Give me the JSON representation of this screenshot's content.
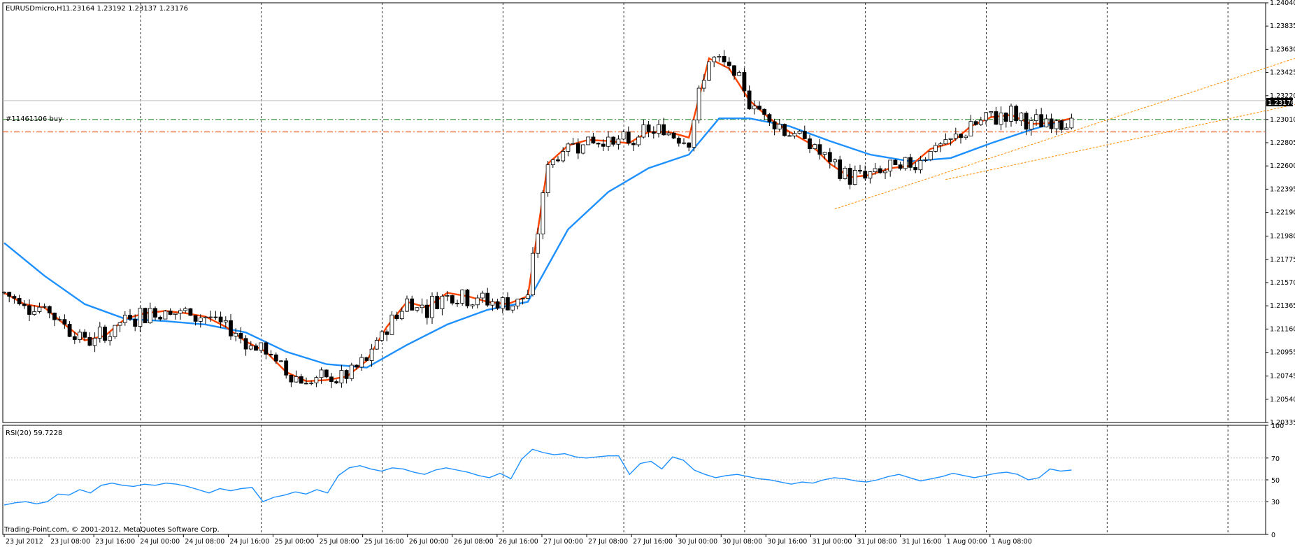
{
  "header": {
    "symbol_label": "EURUSDmicro,H1",
    "ohlc_label": "1.23164 1.23192 1.23137 1.23176"
  },
  "order_line_label": "#11461106 buy",
  "rsi_label": "RSI(20) 59.7228",
  "copyright": "Trading-Point.com, © 2001-2012, MetaQuotes Software Corp.",
  "current_price_label": "1.23176",
  "colors": {
    "background": "#ffffff",
    "bull_candle": "#ffffff",
    "bear_candle": "#000000",
    "ma_fast": "#ff4500",
    "ma_slow": "#1e90ff",
    "rsi_line": "#1e90ff",
    "order_line_green": "#228b22",
    "order_line_red": "#ff4500",
    "trendline": "#ff8c00",
    "current_price_line": "#c0c0c0",
    "grid": "#000000"
  },
  "chart_data": [
    {
      "type": "candlestick",
      "symbol": "EURUSDmicro",
      "timeframe": "H1",
      "ylim": [
        1.20335,
        1.2404
      ],
      "y_ticks": [
        "1.24040",
        "1.23835",
        "1.23630",
        "1.23425",
        "1.23220",
        "1.23010",
        "1.22805",
        "1.22600",
        "1.22395",
        "1.22190",
        "1.21980",
        "1.21775",
        "1.21570",
        "1.21365",
        "1.21160",
        "1.20955",
        "1.20745",
        "1.20540",
        "1.20335"
      ],
      "x_ticks": [
        "23 Jul 2012",
        "23 Jul 08:00",
        "23 Jul 16:00",
        "24 Jul 00:00",
        "24 Jul 08:00",
        "24 Jul 16:00",
        "25 Jul 00:00",
        "25 Jul 08:00",
        "25 Jul 16:00",
        "26 Jul 00:00",
        "26 Jul 08:00",
        "26 Jul 16:00",
        "27 Jul 00:00",
        "27 Jul 08:00",
        "27 Jul 16:00",
        "30 Jul 00:00",
        "30 Jul 08:00",
        "30 Jul 16:00",
        "31 Jul 00:00",
        "31 Jul 08:00",
        "31 Jul 16:00",
        "1 Aug 00:00",
        "1 Aug 08:00"
      ],
      "current_price": 1.23176,
      "order_levels": {
        "buy_order": 1.2301,
        "red_level": 1.229
      },
      "ma_fast_points": [
        [
          0,
          1.2148
        ],
        [
          4,
          1.2138
        ],
        [
          8,
          1.2135
        ],
        [
          12,
          1.212
        ],
        [
          16,
          1.2106
        ],
        [
          20,
          1.211
        ],
        [
          24,
          1.2125
        ],
        [
          28,
          1.213
        ],
        [
          32,
          1.2132
        ],
        [
          36,
          1.213
        ],
        [
          40,
          1.2127
        ],
        [
          44,
          1.2118
        ],
        [
          48,
          1.2105
        ],
        [
          52,
          1.2096
        ],
        [
          56,
          1.2078
        ],
        [
          60,
          1.207
        ],
        [
          64,
          1.2071
        ],
        [
          68,
          1.2074
        ],
        [
          72,
          1.2088
        ],
        [
          76,
          1.2118
        ],
        [
          80,
          1.214
        ],
        [
          84,
          1.2135
        ],
        [
          88,
          1.2148
        ],
        [
          92,
          1.2145
        ],
        [
          96,
          1.214
        ],
        [
          100,
          1.2138
        ],
        [
          104,
          1.2145
        ],
        [
          108,
          1.2262
        ],
        [
          112,
          1.2278
        ],
        [
          116,
          1.2283
        ],
        [
          120,
          1.2282
        ],
        [
          124,
          1.228
        ],
        [
          128,
          1.229
        ],
        [
          132,
          1.229
        ],
        [
          136,
          1.2285
        ],
        [
          140,
          1.2355
        ],
        [
          144,
          1.2346
        ],
        [
          148,
          1.2318
        ],
        [
          152,
          1.2302
        ],
        [
          156,
          1.229
        ],
        [
          160,
          1.228
        ],
        [
          164,
          1.2262
        ],
        [
          168,
          1.225
        ],
        [
          172,
          1.2252
        ],
        [
          176,
          1.2258
        ],
        [
          180,
          1.226
        ],
        [
          184,
          1.2275
        ],
        [
          188,
          1.228
        ],
        [
          192,
          1.2295
        ],
        [
          196,
          1.2303
        ],
        [
          200,
          1.2305
        ],
        [
          204,
          1.2297
        ],
        [
          208,
          1.2298
        ],
        [
          212,
          1.2302
        ]
      ],
      "ma_slow_points": [
        [
          0,
          1.2192
        ],
        [
          8,
          1.2163
        ],
        [
          16,
          1.2138
        ],
        [
          24,
          1.2125
        ],
        [
          32,
          1.2123
        ],
        [
          40,
          1.212
        ],
        [
          48,
          1.2113
        ],
        [
          56,
          1.2096
        ],
        [
          64,
          1.2085
        ],
        [
          72,
          1.2082
        ],
        [
          80,
          1.2102
        ],
        [
          88,
          1.212
        ],
        [
          96,
          1.2133
        ],
        [
          104,
          1.214
        ],
        [
          112,
          1.2204
        ],
        [
          120,
          1.2237
        ],
        [
          128,
          1.2258
        ],
        [
          136,
          1.227
        ],
        [
          142,
          1.2302
        ],
        [
          148,
          1.2302
        ],
        [
          156,
          1.2295
        ],
        [
          164,
          1.2282
        ],
        [
          172,
          1.227
        ],
        [
          180,
          1.2264
        ],
        [
          188,
          1.2267
        ],
        [
          196,
          1.228
        ],
        [
          204,
          1.2292
        ],
        [
          212,
          1.2302
        ]
      ],
      "trendlines": [
        {
          "from": [
            165,
            1.2222
          ],
          "to": [
            275,
            1.2382
          ]
        },
        {
          "from": [
            187,
            1.2248
          ],
          "to": [
            275,
            1.2332
          ]
        }
      ]
    },
    {
      "type": "line",
      "indicator": "RSI(20)",
      "last_value": 59.7228,
      "ylim": [
        0,
        100
      ],
      "y_ticks": [
        "100",
        "70",
        "50",
        "30",
        "0"
      ],
      "levels": [
        70,
        50,
        30
      ],
      "values": [
        27,
        29,
        30,
        28,
        30,
        37,
        36,
        41,
        38,
        45,
        47,
        45,
        44,
        46,
        45,
        47,
        46,
        44,
        41,
        38,
        42,
        40,
        42,
        43,
        30,
        34,
        36,
        39,
        37,
        41,
        38,
        54,
        61,
        63,
        60,
        58,
        61,
        60,
        57,
        55,
        59,
        61,
        59,
        57,
        54,
        52,
        56,
        51,
        69,
        78,
        75,
        73,
        74,
        71,
        70,
        71,
        72,
        72,
        55,
        65,
        67,
        60,
        71,
        68,
        59,
        55,
        52,
        54,
        55,
        53,
        51,
        50,
        48,
        46,
        48,
        47,
        50,
        52,
        51,
        49,
        48,
        50,
        53,
        55,
        52,
        49,
        51,
        53,
        56,
        54,
        52,
        54,
        56,
        57,
        55,
        50,
        52,
        60,
        58,
        59
      ]
    }
  ]
}
